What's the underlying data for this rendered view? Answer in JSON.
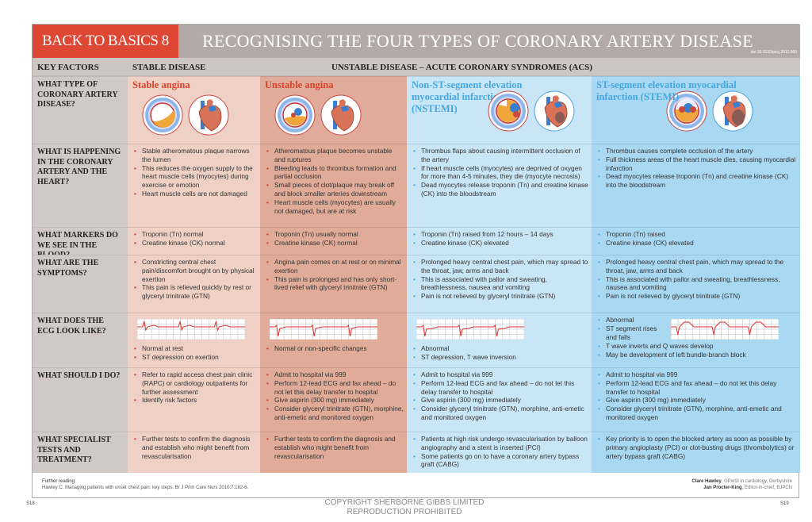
{
  "header": {
    "badge": "BACK TO BASICS 8",
    "title": "RECOGNISING THE FOUR TYPES OF CORONARY ARTERY DISEASE",
    "doi": "doi:10.3132/pccj.2011.060"
  },
  "columns": {
    "key": "KEY FACTORS",
    "stable": "STABLE DISEASE",
    "unstable": "UNSTABLE   DISEASE – ACUTE CORONARY SYNDROMES (ACS)"
  },
  "types": [
    "Stable angina",
    "Unstable angina",
    "Non-ST-segment elevation myocardial infarction (NSTEMI)",
    "ST-segment elevation myocardial infarction (STEMI)"
  ],
  "rows": [
    {
      "label": "What type of coronary artery disease?"
    },
    {
      "label": "What is happening in the coronary artery and the heart?",
      "cells": [
        [
          "Stable atheromatous plaque narrows the lumen",
          "This reduces the oxygen supply to the heart muscle cells (myocytes) during exercise or emotion",
          "Heart muscle cells are not damaged"
        ],
        [
          "Atheromatous plaque becomes unstable and ruptures",
          "Bleeding leads to thrombus formation and partial occlusion",
          "Small pieces of clot/plaque may break off and block smaller arteries downstream",
          "Heart muscle cells (myocytes) are usually not damaged, but are at risk"
        ],
        [
          "Thrombus flaps about causing intermittent occlusion of the artery",
          "If heart muscle cells (myocytes) are deprived of oxygen for more than 4-5 minutes, they die (myocyte necrosis)",
          "Dead myocytes release troponin (Tn) and creatine kinase (CK) into the bloodstream"
        ],
        [
          "Thrombus causes complete occlusion of the artery",
          "Full thickness areas of the heart muscle dies, causing myocardial infarction",
          "Dead myocytes release troponin (Tn) and creatine kinase (CK) into the bloodstream"
        ]
      ]
    },
    {
      "label": "What markers do we see in the blood?",
      "cells": [
        [
          "Troponin (Tn) normal",
          "Creatine kinase (CK) normal"
        ],
        [
          "Troponin (Tn) usually normal",
          "Creatine kinase (CK) normal"
        ],
        [
          "Troponin (Tn) raised from 12 hours – 14 days",
          "Creatine kinase (CK) elevated"
        ],
        [
          "Troponin (Tn) raised",
          "Creatine kinase (CK) elevated"
        ]
      ]
    },
    {
      "label": "What are the symptoms?",
      "cells": [
        [
          "Constricting central chest pain/discomfort brought on by physical exertion",
          "This pain is relieved quickly by rest or glyceryl trinitrate (GTN)"
        ],
        [
          "Angina pain comes on at rest or on minimal exertion",
          "This pain is prolonged and has only short-lived relief with glyceryl trinitrate (GTN)"
        ],
        [
          "Prolonged heavy central chest pain, which may spread to the throat, jaw, arms and back",
          "This is associated with pallor and sweating, breathlessness, nausea and vomiting",
          "Pain is not relieved by glyceryl trinitrate (GTN)"
        ],
        [
          "Prolonged heavy central chest pain, which may spread to the throat, jaw, arms and back",
          "This is associated with pallor and sweating, breathlessness, nausea and vomiting",
          "Pain is not relieved by glyceryl trinitrate (GTN)"
        ]
      ]
    },
    {
      "label": "What does the ECG look like?",
      "cells": [
        [
          "Normal at rest",
          "ST depression on exertion"
        ],
        [
          "Normal or non-specific changes"
        ],
        [
          "Abnormal",
          "ST depression, T wave inversion"
        ],
        [
          "Abnormal",
          "ST segment rises and falls",
          "T wave inverts and Q waves develop",
          "May be development of left bundle-branch block"
        ]
      ]
    },
    {
      "label": "What should I do?",
      "cells": [
        [
          "Refer to rapid access chest pain clinic (RAPC) or cardiology outpatients for further assessment",
          "Identify risk factors"
        ],
        [
          "Admit to hospital via 999",
          "Perform 12-lead ECG and fax ahead – do not let this delay transfer to hospital",
          "Give aspirin (300 mg) immediately",
          "Consider glyceryl trinitrate (GTN), morphine, anti-emetic and monitored oxygen"
        ],
        [
          "Admit to hospital via 999",
          "Perform 12-lead ECG and fax ahead – do not let this delay transfer to hospital",
          "Give aspirin (300 mg) immediately",
          "Consider glyceryl trinitrate (GTN), morphine, anti-emetic and monitored oxygen"
        ],
        [
          "Admit to hospital via 999",
          "Perform 12-lead ECG and fax ahead – do not let this delay transfer to hospital",
          "Give aspirin (300 mg) immediately",
          "Consider glyceryl trinitrate (GTN), morphine, anti-emetic and monitored oxygen"
        ]
      ]
    },
    {
      "label": "What specialist tests and treatment?",
      "cells": [
        [
          "Further tests to confirm the diagnosis and establish who might benefit from revascularisation"
        ],
        [
          "Further tests to confirm the diagnosis and establish who might benefit from revascularisation"
        ],
        [
          "Patients at high risk undergo revascularisation by balloon angiography and a stent is inserted (PCI)",
          "Some patients go on to have a coronary artery bypass graft (CABG)"
        ],
        [
          "Key priority is to open the blocked artery as soon as possible by primary angioplasty (PCI) or clot-busting drugs (thrombolytics) or artery bypass graft (CABG)"
        ]
      ]
    }
  ],
  "footer": {
    "reading_label": "Further reading:",
    "reading": "Hawley C. Managing patients with onset chest pain: key steps. Br J Prim Care Nurs 2010:7:182-6.",
    "author1_name": "Clare Hawley",
    "author1_role": ", GPwSI in cardiology, Derbyshire",
    "author2_name": "Jan Procter-King",
    "author2_role": ", Editor-in-chief, BJPCN"
  },
  "copyright": [
    "COPYRIGHT SHERBORNE GIBBS LIMITED",
    "REPRODUCTION PROHIBITED"
  ],
  "pages": {
    "left": "S18",
    "right": "S19"
  },
  "colors": {
    "badge": "#de4733",
    "stable": "#efd0c5",
    "unstable": "#e0ac99",
    "nstemi": "#c9e6f7",
    "stemi": "#a9d8f3"
  }
}
